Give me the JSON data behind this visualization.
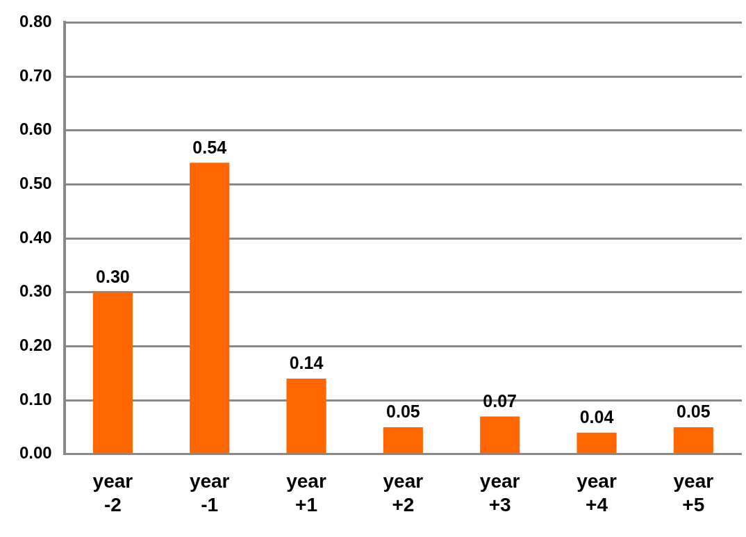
{
  "chart_data": {
    "type": "bar",
    "categories": [
      "year -2",
      "year -1",
      "year +1",
      "year +2",
      "year +3",
      "year +4",
      "year +5"
    ],
    "values": [
      0.3,
      0.54,
      0.14,
      0.05,
      0.07,
      0.04,
      0.05
    ],
    "value_labels": [
      "0.30",
      "0.54",
      "0.14",
      "0.05",
      "0.07",
      "0.04",
      "0.05"
    ],
    "color": "#ff6600",
    "ylim": [
      0,
      0.8
    ],
    "yticks": [
      {
        "value": 0,
        "label": "0.00"
      },
      {
        "value": 0.1,
        "label": "0.10"
      },
      {
        "value": 0.2,
        "label": "0.20"
      },
      {
        "value": 0.3,
        "label": "0.30"
      },
      {
        "value": 0.4,
        "label": "0.40"
      },
      {
        "value": 0.5,
        "label": "0.50"
      },
      {
        "value": 0.6,
        "label": "0.60"
      },
      {
        "value": 0.7,
        "label": "0.70"
      },
      {
        "value": 0.8,
        "label": "0.80"
      }
    ],
    "grid": "y"
  }
}
